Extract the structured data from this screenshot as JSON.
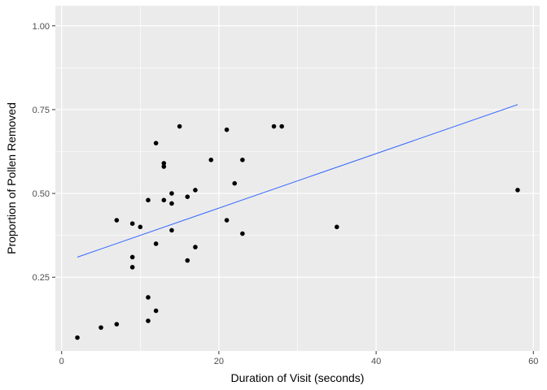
{
  "chart_data": {
    "type": "scatter",
    "xlabel": "Duration of Visit (seconds)",
    "ylabel": "Proportion of Pollen Removed",
    "xlim": [
      -0.8,
      60.8
    ],
    "ylim": [
      0.03,
      1.06
    ],
    "x_ticks": [
      0,
      20,
      40,
      60
    ],
    "x_tick_labels": [
      "0",
      "20",
      "40",
      "60"
    ],
    "y_ticks": [
      0.25,
      0.5,
      0.75,
      1.0
    ],
    "y_tick_labels": [
      "0.25",
      "0.50",
      "0.75",
      "1.00"
    ],
    "grid": true,
    "background": "#ebebeb",
    "point_color": "#000000",
    "line_color": "#3366ff",
    "points": [
      {
        "x": 2,
        "y": 0.07
      },
      {
        "x": 5,
        "y": 0.1
      },
      {
        "x": 7,
        "y": 0.11
      },
      {
        "x": 7,
        "y": 0.42
      },
      {
        "x": 9,
        "y": 0.41
      },
      {
        "x": 9,
        "y": 0.31
      },
      {
        "x": 9,
        "y": 0.28
      },
      {
        "x": 10,
        "y": 0.4
      },
      {
        "x": 11,
        "y": 0.48
      },
      {
        "x": 11,
        "y": 0.19
      },
      {
        "x": 11,
        "y": 0.12
      },
      {
        "x": 12,
        "y": 0.65
      },
      {
        "x": 12,
        "y": 0.35
      },
      {
        "x": 12,
        "y": 0.15
      },
      {
        "x": 13,
        "y": 0.59
      },
      {
        "x": 13,
        "y": 0.58
      },
      {
        "x": 13,
        "y": 0.48
      },
      {
        "x": 14,
        "y": 0.5
      },
      {
        "x": 14,
        "y": 0.47
      },
      {
        "x": 14,
        "y": 0.39
      },
      {
        "x": 15,
        "y": 0.7
      },
      {
        "x": 16,
        "y": 0.49
      },
      {
        "x": 16,
        "y": 0.3
      },
      {
        "x": 17,
        "y": 0.51
      },
      {
        "x": 17,
        "y": 0.34
      },
      {
        "x": 19,
        "y": 0.6
      },
      {
        "x": 21,
        "y": 0.69
      },
      {
        "x": 21,
        "y": 0.42
      },
      {
        "x": 22,
        "y": 0.53
      },
      {
        "x": 23,
        "y": 0.6
      },
      {
        "x": 23,
        "y": 0.38
      },
      {
        "x": 27,
        "y": 0.7
      },
      {
        "x": 28,
        "y": 0.7
      },
      {
        "x": 35,
        "y": 0.4
      },
      {
        "x": 58,
        "y": 0.51
      }
    ],
    "trend_line": {
      "x": [
        2,
        58
      ],
      "y": [
        0.31,
        0.765
      ]
    }
  }
}
